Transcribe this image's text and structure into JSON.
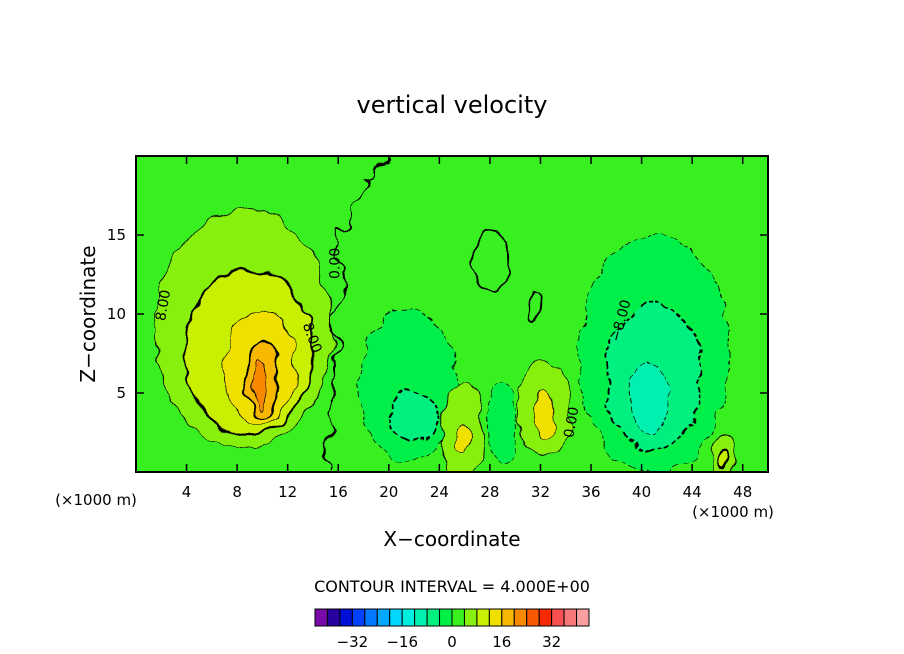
{
  "chart_data": {
    "type": "heatmap",
    "title": "vertical velocity",
    "xlabel": "X−coordinate",
    "ylabel": "Z−coordinate",
    "x_unit_left": "(×1000 m)",
    "x_unit_right": "(×1000 m)",
    "xlim": [
      0,
      50
    ],
    "ylim": [
      0,
      20
    ],
    "x_ticks": [
      4,
      8,
      12,
      16,
      20,
      24,
      28,
      32,
      36,
      40,
      44,
      48
    ],
    "x_tick_labels": [
      "4",
      "8",
      "12",
      "16",
      "20",
      "24",
      "28",
      "32",
      "36",
      "40",
      "44",
      "48"
    ],
    "y_ticks": [
      5,
      10,
      15
    ],
    "y_tick_labels": [
      "5",
      "10",
      "15"
    ],
    "background_value": 0,
    "contour_labels": [
      {
        "text": "8.00",
        "x": 2.5,
        "y": 10.5,
        "rotation": -80
      },
      {
        "text": "8.00",
        "x": 13.6,
        "y": 8.4,
        "rotation": 70
      },
      {
        "text": "0.00",
        "x": 16.1,
        "y": 13.2,
        "rotation": -90
      },
      {
        "text": "−8.00",
        "x": 38.7,
        "y": 9.5,
        "rotation": -75
      },
      {
        "text": "0.00",
        "x": 34.8,
        "y": 3.1,
        "rotation": -80
      }
    ],
    "features": [
      {
        "value": 4,
        "x": 8.5,
        "y": 9.0,
        "rx": 7.0,
        "ry": 7.5
      },
      {
        "value": 8,
        "x": 9.0,
        "y": 7.6,
        "rx": 5.0,
        "ry": 5.3
      },
      {
        "value": 12,
        "x": 9.8,
        "y": 6.6,
        "rx": 2.8,
        "ry": 3.6
      },
      {
        "value": 16,
        "x": 10.0,
        "y": 6.0,
        "rx": 1.3,
        "ry": 2.5
      },
      {
        "value": 20,
        "x": 9.8,
        "y": 5.6,
        "rx": 0.5,
        "ry": 1.5
      },
      {
        "value": -4,
        "x": 21.5,
        "y": 5.5,
        "rx": 3.8,
        "ry": 4.8
      },
      {
        "value": -8,
        "x": 22.0,
        "y": 3.5,
        "rx": 2.0,
        "ry": 1.6
      },
      {
        "value": 4,
        "x": 25.8,
        "y": 2.5,
        "rx": 1.7,
        "ry": 3.0
      },
      {
        "value": 12,
        "x": 25.8,
        "y": 2.2,
        "rx": 0.6,
        "ry": 0.9
      },
      {
        "value": -4,
        "x": 29.0,
        "y": 3.0,
        "rx": 1.2,
        "ry": 2.6
      },
      {
        "value": 4,
        "x": 32.3,
        "y": 4.0,
        "rx": 2.0,
        "ry": 3.2
      },
      {
        "value": 12,
        "x": 32.3,
        "y": 3.7,
        "rx": 0.8,
        "ry": 1.5
      },
      {
        "value": -4,
        "x": 41.0,
        "y": 7.5,
        "rx": 6.0,
        "ry": 7.5
      },
      {
        "value": -8,
        "x": 41.0,
        "y": 6.0,
        "rx": 3.8,
        "ry": 4.6
      },
      {
        "value": -12,
        "x": 40.6,
        "y": 4.6,
        "rx": 1.5,
        "ry": 2.4
      },
      {
        "value": 4,
        "x": 46.5,
        "y": 1.2,
        "rx": 1.0,
        "ry": 1.2
      },
      {
        "value": 8,
        "x": 46.5,
        "y": 1.0,
        "rx": 0.4,
        "ry": 0.5
      },
      {
        "value": 0,
        "x": 28.0,
        "y": 13.5,
        "rx": 1.4,
        "ry": 2.0
      },
      {
        "value": 0,
        "x": 31.5,
        "y": 10.5,
        "rx": 0.6,
        "ry": 1.0
      }
    ],
    "contour_interval_text": "CONTOUR INTERVAL = 4.000E+00",
    "colorbar": {
      "colors": [
        "#7a0aa8",
        "#2800a0",
        "#0010d8",
        "#0040ff",
        "#0078ff",
        "#00a8ff",
        "#00d8ff",
        "#00f0e0",
        "#00f0b0",
        "#00f080",
        "#00f048",
        "#38f020",
        "#88f010",
        "#c8f000",
        "#f0e000",
        "#f8b800",
        "#f88800",
        "#f85800",
        "#f82800",
        "#f85050",
        "#f87878",
        "#f8a0a0"
      ],
      "tick_labels": [
        "−32",
        "−16",
        "0",
        "16",
        "32"
      ],
      "tick_values": [
        -32,
        -16,
        0,
        16,
        32
      ],
      "min": -44,
      "max": 44
    }
  }
}
